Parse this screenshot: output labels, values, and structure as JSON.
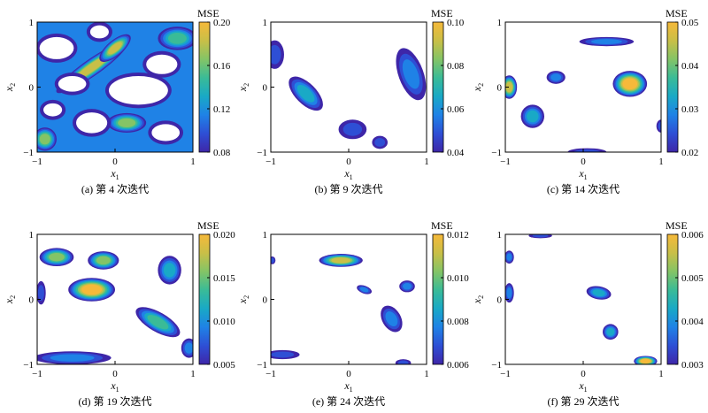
{
  "colormap": [
    "#3e26a8",
    "#2e4fd5",
    "#1f82e6",
    "#19a9c6",
    "#3abb97",
    "#84c466",
    "#c9bf47",
    "#f6b93a"
  ],
  "chart_data": [
    {
      "type": "heatmap",
      "caption": "(a) 第 4 次迭代",
      "colorbar_title": "MSE",
      "colorbar_ticks": [
        "0.20",
        "0.16",
        "0.12",
        "0.08"
      ],
      "vrange": [
        0.08,
        0.2
      ],
      "xlim": [
        -1,
        1
      ],
      "ylim": [
        -1,
        1
      ],
      "x_ticks": [
        "-1",
        "0",
        "1"
      ],
      "y_ticks": [
        "1",
        "0",
        "-1"
      ],
      "xlabel": "x",
      "xlabel_sub": "1",
      "ylabel": "x",
      "ylabel_sub": "2",
      "background_level": 0.12,
      "blobs": [
        {
          "x": -0.3,
          "y": 0.3,
          "rx": 0.55,
          "ry": 0.13,
          "angle": 35,
          "level": 0.18
        },
        {
          "x": 0.0,
          "y": 0.6,
          "rx": 0.25,
          "ry": 0.12,
          "angle": 40,
          "level": 0.19
        },
        {
          "x": 0.15,
          "y": -0.55,
          "rx": 0.25,
          "ry": 0.15,
          "angle": 0,
          "level": 0.17
        },
        {
          "x": -0.9,
          "y": -0.8,
          "rx": 0.15,
          "ry": 0.18,
          "angle": 0,
          "level": 0.16
        },
        {
          "x": 0.8,
          "y": 0.75,
          "rx": 0.25,
          "ry": 0.18,
          "angle": 0,
          "level": 0.15
        }
      ],
      "holes": [
        {
          "x": -0.75,
          "y": 0.6,
          "rx": 0.22,
          "ry": 0.17,
          "angle": 0
        },
        {
          "x": 0.6,
          "y": 0.35,
          "rx": 0.2,
          "ry": 0.15,
          "angle": 0
        },
        {
          "x": 0.3,
          "y": -0.05,
          "rx": 0.38,
          "ry": 0.22,
          "angle": 0
        },
        {
          "x": -0.3,
          "y": -0.55,
          "rx": 0.2,
          "ry": 0.16,
          "angle": 0
        },
        {
          "x": -0.8,
          "y": -0.35,
          "rx": 0.12,
          "ry": 0.1,
          "angle": 0
        },
        {
          "x": 0.65,
          "y": -0.7,
          "rx": 0.18,
          "ry": 0.13,
          "angle": 0
        },
        {
          "x": -0.55,
          "y": 0.05,
          "rx": 0.18,
          "ry": 0.12,
          "angle": 0
        },
        {
          "x": -0.2,
          "y": 0.85,
          "rx": 0.12,
          "ry": 0.1,
          "angle": 0
        }
      ]
    },
    {
      "type": "heatmap",
      "caption": "(b) 第 9 次迭代",
      "colorbar_title": "MSE",
      "colorbar_ticks": [
        "0.10",
        "0.08",
        "0.06",
        "0.04"
      ],
      "vrange": [
        0.04,
        0.1
      ],
      "xlim": [
        -1,
        1
      ],
      "ylim": [
        -1,
        1
      ],
      "x_ticks": [
        "-1",
        "0",
        "1"
      ],
      "y_ticks": [
        "1",
        "0",
        "-1"
      ],
      "xlabel": "x",
      "xlabel_sub": "1",
      "ylabel": "x",
      "ylabel_sub": "2",
      "background_level": null,
      "blobs": [
        {
          "x": -0.55,
          "y": -0.1,
          "rx": 0.28,
          "ry": 0.16,
          "angle": -45,
          "level": 0.065
        },
        {
          "x": -0.95,
          "y": 0.5,
          "rx": 0.12,
          "ry": 0.22,
          "angle": 0,
          "level": 0.05
        },
        {
          "x": 0.8,
          "y": 0.2,
          "rx": 0.16,
          "ry": 0.42,
          "angle": 20,
          "level": 0.06
        },
        {
          "x": 0.05,
          "y": -0.65,
          "rx": 0.18,
          "ry": 0.15,
          "angle": 0,
          "level": 0.05
        },
        {
          "x": 0.4,
          "y": -0.85,
          "rx": 0.1,
          "ry": 0.1,
          "angle": 0,
          "level": 0.045
        }
      ],
      "holes": []
    },
    {
      "type": "heatmap",
      "caption": "(c) 第 14 次迭代",
      "colorbar_title": "MSE",
      "colorbar_ticks": [
        "0.05",
        "0.04",
        "0.03",
        "0.02"
      ],
      "vrange": [
        0.02,
        0.05
      ],
      "xlim": [
        -1,
        1
      ],
      "ylim": [
        -1,
        1
      ],
      "x_ticks": [
        "-1",
        "0",
        "1"
      ],
      "y_ticks": [
        "1",
        "0",
        "-1"
      ],
      "xlabel": "x",
      "xlabel_sub": "1",
      "ylabel": "x",
      "ylabel_sub": "2",
      "background_level": null,
      "blobs": [
        {
          "x": 0.6,
          "y": 0.05,
          "rx": 0.22,
          "ry": 0.2,
          "angle": 0,
          "level": 0.048
        },
        {
          "x": -0.95,
          "y": 0.0,
          "rx": 0.1,
          "ry": 0.18,
          "angle": 0,
          "level": 0.045
        },
        {
          "x": 0.3,
          "y": 0.7,
          "rx": 0.35,
          "ry": 0.07,
          "angle": 0,
          "level": 0.03
        },
        {
          "x": -0.35,
          "y": 0.15,
          "rx": 0.12,
          "ry": 0.1,
          "angle": 0,
          "level": 0.028
        },
        {
          "x": -0.65,
          "y": -0.45,
          "rx": 0.15,
          "ry": 0.18,
          "angle": 0,
          "level": 0.032
        },
        {
          "x": 0.05,
          "y": -1.0,
          "rx": 0.25,
          "ry": 0.06,
          "angle": 0,
          "level": 0.025
        },
        {
          "x": 1.0,
          "y": -0.6,
          "rx": 0.06,
          "ry": 0.1,
          "angle": 0,
          "level": 0.025
        }
      ],
      "holes": []
    },
    {
      "type": "heatmap",
      "caption": "(d) 第 19 次迭代",
      "colorbar_title": "MSE",
      "colorbar_ticks": [
        "0.020",
        "0.015",
        "0.010",
        "0.005"
      ],
      "vrange": [
        0.005,
        0.02
      ],
      "xlim": [
        -1,
        1
      ],
      "ylim": [
        -1,
        1
      ],
      "x_ticks": [
        "-1",
        "0",
        "1"
      ],
      "y_ticks": [
        "1",
        "0",
        "-1"
      ],
      "xlabel": "x",
      "xlabel_sub": "1",
      "ylabel": "x",
      "ylabel_sub": "2",
      "background_level": null,
      "blobs": [
        {
          "x": -0.3,
          "y": 0.15,
          "rx": 0.3,
          "ry": 0.18,
          "angle": 0,
          "level": 0.019
        },
        {
          "x": -0.75,
          "y": 0.65,
          "rx": 0.22,
          "ry": 0.14,
          "angle": 0,
          "level": 0.016
        },
        {
          "x": -0.15,
          "y": 0.6,
          "rx": 0.2,
          "ry": 0.14,
          "angle": 0,
          "level": 0.015
        },
        {
          "x": 0.7,
          "y": 0.45,
          "rx": 0.15,
          "ry": 0.22,
          "angle": 0,
          "level": 0.012
        },
        {
          "x": 0.55,
          "y": -0.35,
          "rx": 0.32,
          "ry": 0.15,
          "angle": -30,
          "level": 0.013
        },
        {
          "x": -0.55,
          "y": -0.9,
          "rx": 0.5,
          "ry": 0.1,
          "angle": 0,
          "level": 0.009
        },
        {
          "x": 0.95,
          "y": -0.75,
          "rx": 0.1,
          "ry": 0.15,
          "angle": 0,
          "level": 0.009
        },
        {
          "x": -0.95,
          "y": 0.1,
          "rx": 0.06,
          "ry": 0.18,
          "angle": 0,
          "level": 0.008
        }
      ],
      "holes": []
    },
    {
      "type": "heatmap",
      "caption": "(e) 第 24 次迭代",
      "colorbar_title": "MSE",
      "colorbar_ticks": [
        "0.012",
        "0.010",
        "0.008",
        "0.006"
      ],
      "vrange": [
        0.006,
        0.012
      ],
      "xlim": [
        -1,
        1
      ],
      "ylim": [
        -1,
        1
      ],
      "x_ticks": [
        "-1",
        "0",
        "1"
      ],
      "y_ticks": [
        "1",
        "0",
        "-1"
      ],
      "xlabel": "x",
      "xlabel_sub": "1",
      "ylabel": "x",
      "ylabel_sub": "2",
      "background_level": null,
      "blobs": [
        {
          "x": -0.1,
          "y": 0.6,
          "rx": 0.28,
          "ry": 0.1,
          "angle": 0,
          "level": 0.0115
        },
        {
          "x": 0.55,
          "y": -0.3,
          "rx": 0.12,
          "ry": 0.22,
          "angle": 30,
          "level": 0.008
        },
        {
          "x": 0.75,
          "y": 0.2,
          "rx": 0.1,
          "ry": 0.09,
          "angle": 0,
          "level": 0.008
        },
        {
          "x": 0.2,
          "y": 0.15,
          "rx": 0.1,
          "ry": 0.06,
          "angle": -20,
          "level": 0.0075
        },
        {
          "x": -0.85,
          "y": -0.85,
          "rx": 0.22,
          "ry": 0.07,
          "angle": 0,
          "level": 0.007
        },
        {
          "x": 0.7,
          "y": -0.98,
          "rx": 0.1,
          "ry": 0.06,
          "angle": 0,
          "level": 0.007
        },
        {
          "x": -0.98,
          "y": 0.6,
          "rx": 0.04,
          "ry": 0.06,
          "angle": 0,
          "level": 0.0065
        }
      ],
      "holes": []
    },
    {
      "type": "heatmap",
      "caption": "(f) 第 29 次迭代",
      "colorbar_title": "MSE",
      "colorbar_ticks": [
        "0.006",
        "0.005",
        "0.004",
        "0.003"
      ],
      "vrange": [
        0.003,
        0.006
      ],
      "xlim": [
        -1,
        1
      ],
      "ylim": [
        -1,
        1
      ],
      "x_ticks": [
        "-1",
        "0",
        "1"
      ],
      "y_ticks": [
        "1",
        "0",
        "-1"
      ],
      "xlabel": "x",
      "xlabel_sub": "1",
      "ylabel": "x",
      "ylabel_sub": "2",
      "background_level": null,
      "blobs": [
        {
          "x": 0.8,
          "y": -0.95,
          "rx": 0.15,
          "ry": 0.08,
          "angle": 0,
          "level": 0.0058
        },
        {
          "x": 0.2,
          "y": 0.1,
          "rx": 0.16,
          "ry": 0.1,
          "angle": -10,
          "level": 0.0045
        },
        {
          "x": 0.35,
          "y": -0.5,
          "rx": 0.1,
          "ry": 0.12,
          "angle": 0,
          "level": 0.0045
        },
        {
          "x": -0.95,
          "y": 0.65,
          "rx": 0.06,
          "ry": 0.1,
          "angle": 0,
          "level": 0.004
        },
        {
          "x": -0.95,
          "y": 0.1,
          "rx": 0.06,
          "ry": 0.15,
          "angle": 0,
          "level": 0.004
        },
        {
          "x": -0.55,
          "y": 0.98,
          "rx": 0.15,
          "ry": 0.04,
          "angle": 0,
          "level": 0.0035
        }
      ],
      "holes": []
    }
  ]
}
